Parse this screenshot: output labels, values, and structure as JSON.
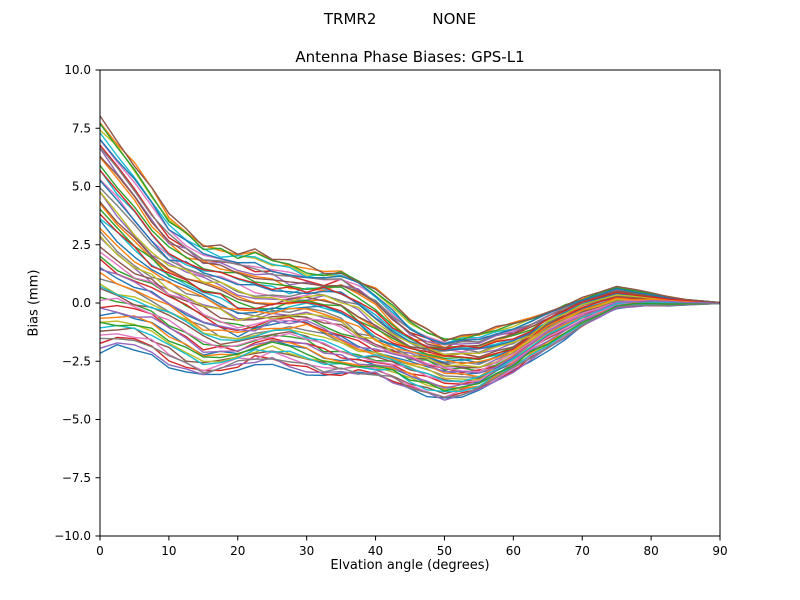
{
  "header": {
    "left": "TRMR2",
    "right": "NONE"
  },
  "chart_data": {
    "type": "line",
    "title": "Antenna Phase Biases: GPS-L1",
    "xlabel": "Elvation angle (degrees)",
    "ylabel": "Bias (mm)",
    "xlim": [
      0,
      90
    ],
    "ylim": [
      -10,
      10
    ],
    "xticks": [
      0,
      10,
      20,
      30,
      40,
      50,
      60,
      70,
      80,
      90
    ],
    "yticks": [
      10.0,
      7.5,
      5.0,
      2.5,
      0.0,
      -2.5,
      -5.0,
      -7.5,
      -10.0
    ],
    "ytick_labels": [
      "10.0",
      "7.5",
      "5.0",
      "2.5",
      "0.0",
      "−2.5",
      "−5.0",
      "−7.5",
      "−10.0"
    ],
    "grid": false,
    "legend": "none",
    "n_series": 56,
    "sample_x": [
      0,
      5,
      10,
      15,
      20,
      25,
      30,
      35,
      40,
      45,
      50,
      55,
      60,
      65,
      70,
      75,
      80,
      85,
      90
    ],
    "band_center": [
      3.0,
      1.9,
      0.7,
      -0.1,
      -0.4,
      -0.35,
      -0.5,
      -0.8,
      -1.4,
      -2.2,
      -2.7,
      -2.6,
      -2.0,
      -1.1,
      -0.35,
      0.2,
      0.15,
      0.05,
      0.0
    ],
    "band_halfwidth": [
      5.0,
      4.0,
      3.3,
      2.9,
      2.5,
      2.3,
      2.3,
      2.2,
      1.9,
      1.55,
      1.3,
      1.2,
      1.05,
      0.85,
      0.6,
      0.45,
      0.28,
      0.12,
      0.02
    ],
    "series_offsets": [
      -1.0,
      0.236,
      -0.528,
      0.708,
      -0.056,
      -0.82,
      0.416,
      -0.348,
      0.888,
      0.124,
      -0.64,
      0.596,
      -0.168,
      -0.932,
      0.304,
      -0.46,
      0.776,
      0.012,
      -0.752,
      0.484,
      -0.28,
      0.956,
      0.192,
      -0.572,
      0.664,
      -0.1,
      -0.864,
      0.372,
      -0.392,
      0.844,
      0.08,
      -0.684,
      0.552,
      -0.212,
      -0.976,
      0.26,
      -0.504,
      0.732,
      -0.032,
      -0.796,
      0.44,
      -0.324,
      0.912,
      0.148,
      -0.616,
      0.62,
      -0.144,
      -0.908,
      0.328,
      -0.436,
      0.8,
      0.036,
      -0.728,
      0.508,
      -0.256,
      0.98
    ],
    "palette": [
      "#1f77b4",
      "#ff7f0e",
      "#2ca02c",
      "#d62728",
      "#9467bd",
      "#8c564b",
      "#e377c2",
      "#7f7f7f",
      "#bcbd22",
      "#17becf"
    ],
    "axis_color": "#000000",
    "background_color": "#ffffff"
  }
}
